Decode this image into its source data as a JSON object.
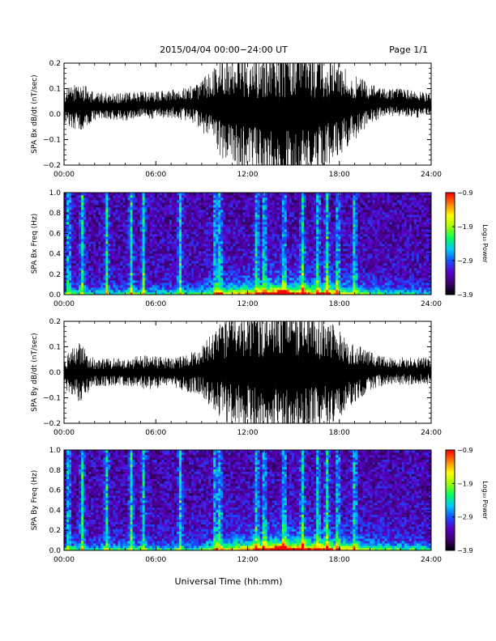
{
  "header": {
    "title": "2015/04/04  00:00−24:00 UT",
    "page": "Page 1/1"
  },
  "footer": {
    "xlabel": "Universal Time (hh:mm)"
  },
  "chart_data": [
    {
      "type": "line",
      "ylabel": "SPA Bx dB/dt (nT/sec)",
      "x_ticks": [
        "00:00",
        "06:00",
        "12:00",
        "18:00",
        "24:00"
      ],
      "y_ticks": [
        "−0.2",
        "−0.1",
        "0.0",
        "0.1",
        "0.2"
      ],
      "xlim": [
        0,
        24
      ],
      "ylim": [
        -0.2,
        0.2
      ],
      "series": [
        {
          "x_hours": [
            0,
            1,
            2,
            3,
            4,
            5,
            6,
            7,
            8,
            9,
            10,
            11,
            12,
            13,
            14,
            15,
            16,
            17,
            18,
            19,
            20,
            21,
            22,
            23,
            24
          ],
          "center": [
            0.03,
            0.03,
            0.03,
            0.03,
            0.03,
            0.035,
            0.035,
            0.04,
            0.04,
            0.035,
            0.03,
            0.02,
            0.01,
            0.0,
            0.0,
            0.0,
            0.0,
            0.01,
            0.02,
            0.03,
            0.04,
            0.045,
            0.045,
            0.04,
            0.035
          ],
          "half_width": [
            0.06,
            0.09,
            0.05,
            0.05,
            0.05,
            0.05,
            0.05,
            0.05,
            0.06,
            0.09,
            0.17,
            0.22,
            0.22,
            0.24,
            0.26,
            0.26,
            0.24,
            0.2,
            0.17,
            0.12,
            0.07,
            0.05,
            0.05,
            0.05,
            0.04
          ]
        }
      ]
    },
    {
      "type": "heatmap",
      "ylabel": "SPA Bx Freq (Hz)",
      "x_ticks": [
        "00:00",
        "06:00",
        "12:00",
        "18:00",
        "24:00"
      ],
      "y_ticks": [
        "0.0",
        "0.2",
        "0.4",
        "0.6",
        "0.8",
        "1.0"
      ],
      "xlim": [
        0,
        24
      ],
      "ylim": [
        0,
        1.0
      ],
      "colorbar": {
        "label": "Log₁₀ Power",
        "ticks": [
          "−0.9",
          "−1.9",
          "−2.9",
          "−3.9"
        ],
        "range": [
          -3.9,
          -0.9
        ],
        "colors": [
          "#000000",
          "#3c0070",
          "#5a00c8",
          "#1450ff",
          "#00c8ff",
          "#00ff60",
          "#a0ff00",
          "#ffff00",
          "#ff8000",
          "#ff0000"
        ]
      },
      "vertical_streaks_hours": [
        0.3,
        1.2,
        2.8,
        4.4,
        5.2,
        7.6,
        9.9,
        10.2,
        12.6,
        13.1,
        14.4,
        15.6,
        16.6,
        17.2,
        17.9,
        19.0
      ],
      "activity_hours": [
        0,
        1,
        2,
        3,
        4,
        5,
        6,
        7,
        8,
        9,
        10,
        11,
        12,
        13,
        14,
        15,
        16,
        17,
        18,
        19,
        20,
        21,
        22,
        23,
        24
      ],
      "activity": [
        0.15,
        0.2,
        0.15,
        0.18,
        0.2,
        0.2,
        0.15,
        0.2,
        0.15,
        0.25,
        0.45,
        0.55,
        0.6,
        0.75,
        0.8,
        0.75,
        0.7,
        0.65,
        0.5,
        0.35,
        0.25,
        0.2,
        0.15,
        0.1,
        0.1
      ],
      "spectral_peak_hour": 14.2,
      "peak_freq_hz": 0.02
    },
    {
      "type": "line",
      "ylabel": "SPA By dB/dt (nT/sec)",
      "x_ticks": [
        "00:00",
        "06:00",
        "12:00",
        "18:00",
        "24:00"
      ],
      "y_ticks": [
        "−0.2",
        "−0.1",
        "0.0",
        "0.1",
        "0.2"
      ],
      "xlim": [
        0,
        24
      ],
      "ylim": [
        -0.2,
        0.2
      ],
      "series": [
        {
          "x_hours": [
            0,
            1,
            2,
            3,
            4,
            5,
            6,
            7,
            8,
            9,
            10,
            11,
            12,
            13,
            14,
            15,
            16,
            17,
            18,
            19,
            20,
            21,
            22,
            23,
            24
          ],
          "center": [
            0.0,
            0.0,
            0.0,
            0.0,
            0.0,
            0.0,
            0.0,
            0.0,
            0.0,
            0.005,
            0.005,
            0.005,
            0.005,
            0.0,
            0.0,
            0.0,
            0.0,
            0.0,
            0.0,
            0.0,
            0.005,
            0.005,
            0.005,
            0.005,
            0.005
          ],
          "half_width": [
            0.06,
            0.11,
            0.05,
            0.05,
            0.05,
            0.06,
            0.06,
            0.05,
            0.07,
            0.09,
            0.16,
            0.2,
            0.22,
            0.24,
            0.26,
            0.26,
            0.24,
            0.2,
            0.16,
            0.11,
            0.07,
            0.05,
            0.05,
            0.05,
            0.05
          ]
        }
      ]
    },
    {
      "type": "heatmap",
      "ylabel": "SPA By Freq (Hz)",
      "x_ticks": [
        "00:00",
        "06:00",
        "12:00",
        "18:00",
        "24:00"
      ],
      "y_ticks": [
        "0.0",
        "0.2",
        "0.4",
        "0.6",
        "0.8",
        "1.0"
      ],
      "xlim": [
        0,
        24
      ],
      "ylim": [
        0,
        1.0
      ],
      "colorbar": {
        "label": "Log₁₀ Power",
        "ticks": [
          "−0.9",
          "−1.9",
          "−2.9",
          "−3.9"
        ],
        "range": [
          -3.9,
          -0.9
        ],
        "colors": [
          "#000000",
          "#3c0070",
          "#5a00c8",
          "#1450ff",
          "#00c8ff",
          "#00ff60",
          "#a0ff00",
          "#ffff00",
          "#ff8000",
          "#ff0000"
        ]
      },
      "vertical_streaks_hours": [
        0.3,
        1.2,
        2.8,
        4.4,
        5.2,
        7.6,
        9.9,
        10.2,
        12.6,
        13.1,
        14.4,
        15.6,
        16.6,
        17.2,
        17.9,
        19.0
      ],
      "activity_hours": [
        0,
        1,
        2,
        3,
        4,
        5,
        6,
        7,
        8,
        9,
        10,
        11,
        12,
        13,
        14,
        15,
        16,
        17,
        18,
        19,
        20,
        21,
        22,
        23,
        24
      ],
      "activity": [
        0.2,
        0.25,
        0.15,
        0.2,
        0.2,
        0.2,
        0.15,
        0.2,
        0.15,
        0.25,
        0.45,
        0.55,
        0.6,
        0.75,
        0.85,
        0.8,
        0.75,
        0.7,
        0.6,
        0.5,
        0.35,
        0.3,
        0.25,
        0.2,
        0.15
      ],
      "spectral_peak_hour": 14.1,
      "peak_freq_hz": 0.02
    }
  ]
}
